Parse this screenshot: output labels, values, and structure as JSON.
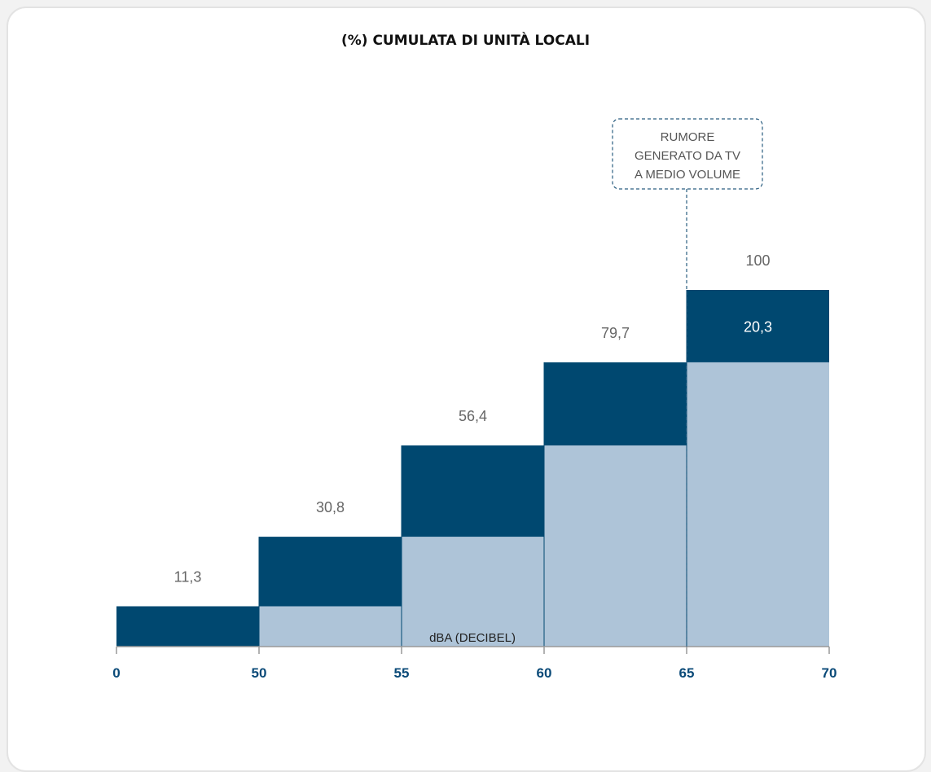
{
  "chart_data": {
    "type": "bar",
    "title": "(%) CUMULATA DI UNITÀ LOCALI",
    "xlabel": "dBA (DECIBEL)",
    "x_ticks": [
      "0",
      "50",
      "55",
      "60",
      "65",
      "70"
    ],
    "bins": [
      {
        "from": 0,
        "to": 50,
        "base": 0,
        "increment": 11.3,
        "cumulative": 11.3,
        "label": "11,3"
      },
      {
        "from": 50,
        "to": 55,
        "base": 11.3,
        "increment": 19.5,
        "cumulative": 30.8,
        "label": "30,8"
      },
      {
        "from": 55,
        "to": 60,
        "base": 30.8,
        "increment": 25.6,
        "cumulative": 56.4,
        "label": "56,4"
      },
      {
        "from": 60,
        "to": 65,
        "base": 56.4,
        "increment": 23.3,
        "cumulative": 79.7,
        "label": "79,7"
      },
      {
        "from": 65,
        "to": 70,
        "base": 79.7,
        "increment": 20.3,
        "cumulative": 100,
        "label": "100",
        "inner_label": "20,3"
      }
    ],
    "ylim": [
      0,
      100
    ],
    "annotation": {
      "at": 65,
      "lines": [
        "RUMORE",
        "GENERATO DA TV",
        "A MEDIO VOLUME"
      ]
    },
    "colors": {
      "increment": "#004870",
      "base": "#aec4d8",
      "tick": "#0a4a78",
      "value_label": "#666666",
      "annotation": "#2a5d80"
    }
  }
}
